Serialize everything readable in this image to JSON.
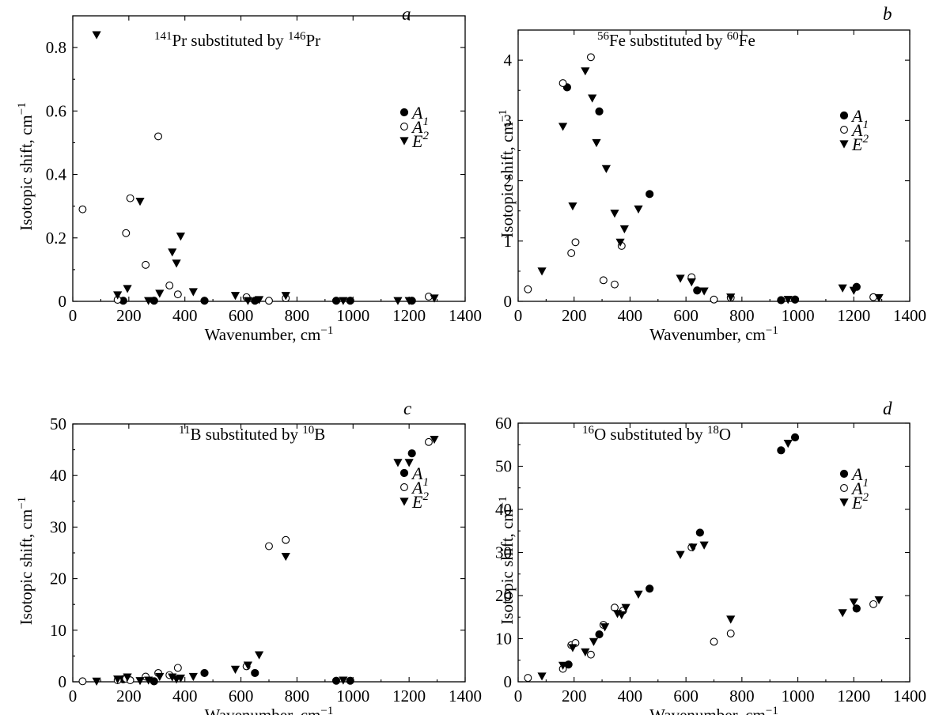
{
  "chart_data": [
    {
      "type": "scatter",
      "panel_label": "a",
      "annotation": {
        "base": "Pr substituted by ",
        "base_sup": "141",
        "target": "Pr",
        "target_sup": "146"
      },
      "xlabel": "Wavenumber, cm",
      "xlabel_sup": "−1",
      "ylabel": "Isotopic shift, cm",
      "ylabel_sup": "−1",
      "xlim": [
        0,
        1400
      ],
      "ylim": [
        0,
        0.9
      ],
      "xticks": [
        0,
        200,
        400,
        600,
        800,
        1000,
        1200,
        1400
      ],
      "yticks": [
        0,
        0.2,
        0.4,
        0.6,
        0.8
      ],
      "ytick_labels": [
        "0",
        "0.2",
        "0.4",
        "0.6",
        "0.8"
      ],
      "legend": {
        "position": "right",
        "entries": [
          "A",
          "A",
          "E"
        ],
        "subscripts": [
          "1",
          "2",
          ""
        ]
      },
      "series": [
        {
          "name": "A1",
          "marker": "filled-circle",
          "points": [
            [
              180,
              0.002
            ],
            [
              290,
              0.002
            ],
            [
              470,
              0.002
            ],
            [
              650,
              0.002
            ],
            [
              940,
              0.002
            ],
            [
              990,
              0.002
            ],
            [
              1210,
              0.002
            ]
          ]
        },
        {
          "name": "A2",
          "marker": "open-circle",
          "points": [
            [
              35,
              0.29
            ],
            [
              160,
              0.005
            ],
            [
              190,
              0.215
            ],
            [
              205,
              0.325
            ],
            [
              260,
              0.115
            ],
            [
              305,
              0.52
            ],
            [
              345,
              0.05
            ],
            [
              375,
              0.022
            ],
            [
              620,
              0.013
            ],
            [
              700,
              0.002
            ],
            [
              760,
              0.01
            ],
            [
              1270,
              0.015
            ]
          ]
        },
        {
          "name": "E",
          "marker": "filled-triangle-down",
          "points": [
            [
              85,
              0.84
            ],
            [
              160,
              0.02
            ],
            [
              195,
              0.04
            ],
            [
              240,
              0.315
            ],
            [
              270,
              0.002
            ],
            [
              310,
              0.025
            ],
            [
              355,
              0.155
            ],
            [
              370,
              0.12
            ],
            [
              385,
              0.205
            ],
            [
              430,
              0.03
            ],
            [
              580,
              0.018
            ],
            [
              625,
              0.002
            ],
            [
              665,
              0.005
            ],
            [
              760,
              0.018
            ],
            [
              965,
              0.002
            ],
            [
              1160,
              0.002
            ],
            [
              1200,
              0.002
            ],
            [
              1290,
              0.01
            ]
          ]
        }
      ]
    },
    {
      "type": "scatter",
      "panel_label": "b",
      "annotation": {
        "base": "Fe substituted by ",
        "base_sup": "56",
        "target": "Fe",
        "target_sup": "60"
      },
      "xlabel": "Wavenumber, cm",
      "xlabel_sup": "−1",
      "ylabel": "Isotopic shift, cm",
      "ylabel_sup": "−1",
      "xlim": [
        0,
        1400
      ],
      "ylim": [
        0,
        4.5
      ],
      "xticks": [
        0,
        200,
        400,
        600,
        800,
        1000,
        1200,
        1400
      ],
      "yticks": [
        0,
        1,
        2,
        3,
        4
      ],
      "ytick_labels": [
        "0",
        "1",
        "2",
        "3",
        "4"
      ],
      "legend": {
        "position": "right",
        "entries": [
          "A",
          "A",
          "E"
        ],
        "subscripts": [
          "1",
          "2",
          ""
        ]
      },
      "series": [
        {
          "name": "A1",
          "marker": "filled-circle",
          "points": [
            [
              175,
              3.55
            ],
            [
              290,
              3.15
            ],
            [
              470,
              1.78
            ],
            [
              640,
              0.18
            ],
            [
              940,
              0.02
            ],
            [
              990,
              0.03
            ],
            [
              1210,
              0.24
            ]
          ]
        },
        {
          "name": "A2",
          "marker": "open-circle",
          "points": [
            [
              35,
              0.2
            ],
            [
              160,
              3.62
            ],
            [
              190,
              0.8
            ],
            [
              205,
              0.98
            ],
            [
              260,
              4.05
            ],
            [
              305,
              0.35
            ],
            [
              345,
              0.28
            ],
            [
              370,
              0.92
            ],
            [
              620,
              0.4
            ],
            [
              700,
              0.03
            ],
            [
              760,
              0.06
            ],
            [
              1270,
              0.07
            ]
          ]
        },
        {
          "name": "E",
          "marker": "filled-triangle-down",
          "points": [
            [
              85,
              0.5
            ],
            [
              160,
              2.9
            ],
            [
              195,
              1.58
            ],
            [
              240,
              3.82
            ],
            [
              265,
              3.37
            ],
            [
              280,
              2.63
            ],
            [
              315,
              2.2
            ],
            [
              345,
              1.46
            ],
            [
              365,
              0.98
            ],
            [
              380,
              1.2
            ],
            [
              430,
              1.53
            ],
            [
              580,
              0.38
            ],
            [
              620,
              0.32
            ],
            [
              665,
              0.17
            ],
            [
              760,
              0.07
            ],
            [
              965,
              0.03
            ],
            [
              1160,
              0.22
            ],
            [
              1200,
              0.18
            ],
            [
              1290,
              0.06
            ]
          ]
        }
      ]
    },
    {
      "type": "scatter",
      "panel_label": "c",
      "annotation": {
        "base": "B substituted by ",
        "base_sup": "11",
        "target": "B",
        "target_sup": "10"
      },
      "xlabel": "Wavenumber, cm",
      "xlabel_sup": "−1",
      "ylabel": "Isotopic shift, cm",
      "ylabel_sup": "−1",
      "xlim": [
        0,
        1400
      ],
      "ylim": [
        0,
        50
      ],
      "xticks": [
        0,
        200,
        400,
        600,
        800,
        1000,
        1200,
        1400
      ],
      "yticks": [
        0,
        10,
        20,
        30,
        40,
        50
      ],
      "ytick_labels": [
        "0",
        "10",
        "20",
        "30",
        "40",
        "50"
      ],
      "legend": {
        "position": "right",
        "entries": [
          "A",
          "A",
          "E"
        ],
        "subscripts": [
          "1",
          "2",
          ""
        ]
      },
      "series": [
        {
          "name": "A1",
          "marker": "filled-circle",
          "points": [
            [
              180,
              0.5
            ],
            [
              290,
              0.1
            ],
            [
              470,
              1.7
            ],
            [
              650,
              1.7
            ],
            [
              940,
              0.2
            ],
            [
              990,
              0.2
            ],
            [
              1210,
              44.3
            ]
          ]
        },
        {
          "name": "A2",
          "marker": "open-circle",
          "points": [
            [
              35,
              0.1
            ],
            [
              160,
              0.3
            ],
            [
              190,
              0.6
            ],
            [
              205,
              0.3
            ],
            [
              260,
              1.0
            ],
            [
              305,
              1.7
            ],
            [
              345,
              1.3
            ],
            [
              375,
              2.7
            ],
            [
              620,
              3.0
            ],
            [
              700,
              26.3
            ],
            [
              760,
              27.5
            ],
            [
              1270,
              46.5
            ]
          ]
        },
        {
          "name": "E",
          "marker": "filled-triangle-down",
          "points": [
            [
              85,
              0.1
            ],
            [
              160,
              0.5
            ],
            [
              195,
              0.9
            ],
            [
              240,
              0.2
            ],
            [
              270,
              0.3
            ],
            [
              310,
              1.0
            ],
            [
              355,
              0.9
            ],
            [
              370,
              0.5
            ],
            [
              385,
              0.7
            ],
            [
              430,
              1.0
            ],
            [
              580,
              2.4
            ],
            [
              625,
              3.2
            ],
            [
              665,
              5.2
            ],
            [
              760,
              24.3
            ],
            [
              965,
              0.3
            ],
            [
              1160,
              42.5
            ],
            [
              1200,
              42.5
            ],
            [
              1290,
              47.0
            ]
          ]
        }
      ]
    },
    {
      "type": "scatter",
      "panel_label": "d",
      "annotation": {
        "base": "O substituted by ",
        "base_sup": "16",
        "target": "O",
        "target_sup": "18"
      },
      "xlabel": "Wavenumber, cm",
      "xlabel_sup": "−1",
      "ylabel": "Isotopic shift, cm",
      "ylabel_sup": "−1",
      "xlim": [
        0,
        1400
      ],
      "ylim": [
        0,
        60
      ],
      "xticks": [
        0,
        200,
        400,
        600,
        800,
        1000,
        1200,
        1400
      ],
      "yticks": [
        0,
        10,
        20,
        30,
        40,
        50,
        60
      ],
      "ytick_labels": [
        "0",
        "10",
        "20",
        "30",
        "40",
        "50",
        "60"
      ],
      "legend": {
        "position": "right",
        "entries": [
          "A",
          "A",
          "E"
        ],
        "subscripts": [
          "1",
          "2",
          ""
        ]
      },
      "series": [
        {
          "name": "A1",
          "marker": "filled-circle",
          "points": [
            [
              180,
              4.0
            ],
            [
              290,
              11.0
            ],
            [
              470,
              21.6
            ],
            [
              650,
              34.6
            ],
            [
              940,
              53.7
            ],
            [
              990,
              56.7
            ],
            [
              1210,
              17.0
            ]
          ]
        },
        {
          "name": "A2",
          "marker": "open-circle",
          "points": [
            [
              35,
              0.9
            ],
            [
              160,
              3.0
            ],
            [
              190,
              8.5
            ],
            [
              205,
              9.0
            ],
            [
              260,
              6.3
            ],
            [
              305,
              13.2
            ],
            [
              345,
              17.2
            ],
            [
              375,
              16.5
            ],
            [
              620,
              31.2
            ],
            [
              700,
              9.3
            ],
            [
              760,
              11.2
            ],
            [
              1270,
              18.0
            ]
          ]
        },
        {
          "name": "E",
          "marker": "filled-triangle-down",
          "points": [
            [
              85,
              1.3
            ],
            [
              160,
              3.8
            ],
            [
              195,
              7.9
            ],
            [
              240,
              6.9
            ],
            [
              270,
              9.3
            ],
            [
              310,
              12.7
            ],
            [
              355,
              15.8
            ],
            [
              370,
              15.5
            ],
            [
              385,
              17.2
            ],
            [
              430,
              20.3
            ],
            [
              580,
              29.5
            ],
            [
              625,
              31.2
            ],
            [
              665,
              31.7
            ],
            [
              760,
              14.5
            ],
            [
              965,
              55.3
            ],
            [
              1160,
              16.0
            ],
            [
              1200,
              18.5
            ],
            [
              1290,
              19.0
            ]
          ]
        }
      ]
    }
  ]
}
